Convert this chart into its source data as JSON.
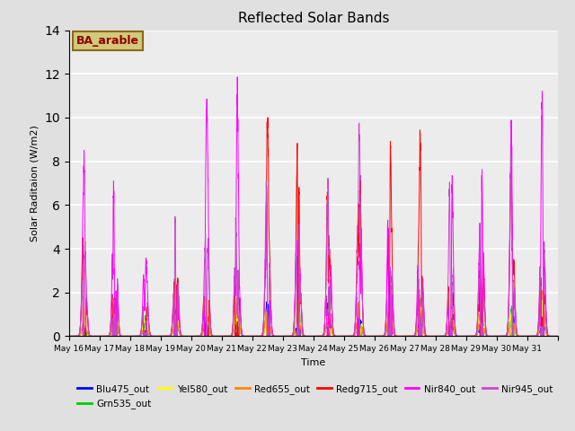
{
  "title": "Reflected Solar Bands",
  "xlabel": "Time",
  "ylabel": "Solar Raditaion (W/m2)",
  "ylim": [
    0,
    14
  ],
  "annotation_text": "BA_arable",
  "annotation_box_color": "#d4c87a",
  "annotation_text_color": "#8b0000",
  "annotation_edge_color": "#8b6914",
  "background_color": "#e0e0e0",
  "plot_bg_color": "#ececec",
  "grid_color": "#ffffff",
  "series": [
    {
      "name": "Blu475_out",
      "color": "#0000ff",
      "peak_scale": 0.15
    },
    {
      "name": "Grn535_out",
      "color": "#00cc00",
      "peak_scale": 0.18
    },
    {
      "name": "Yel580_out",
      "color": "#ffff00",
      "peak_scale": 0.2
    },
    {
      "name": "Red655_out",
      "color": "#ff8800",
      "peak_scale": 0.22
    },
    {
      "name": "Redg715_out",
      "color": "#ff0000",
      "peak_scale": 0.85
    },
    {
      "name": "Nir840_out",
      "color": "#ff00ff",
      "peak_scale": 1.0
    },
    {
      "name": "Nir945_out",
      "color": "#cc44cc",
      "peak_scale": 0.93
    }
  ],
  "n_days": 16,
  "start_day": 16,
  "samples_per_day": 288,
  "max_nir840": 13.0,
  "day_peaks": [
    0.62,
    0.97,
    0.46,
    0.64,
    0.85,
    0.88,
    0.9,
    0.92,
    0.88,
    0.88,
    0.9,
    1.0,
    0.9,
    0.92,
    0.93,
    0.92
  ]
}
